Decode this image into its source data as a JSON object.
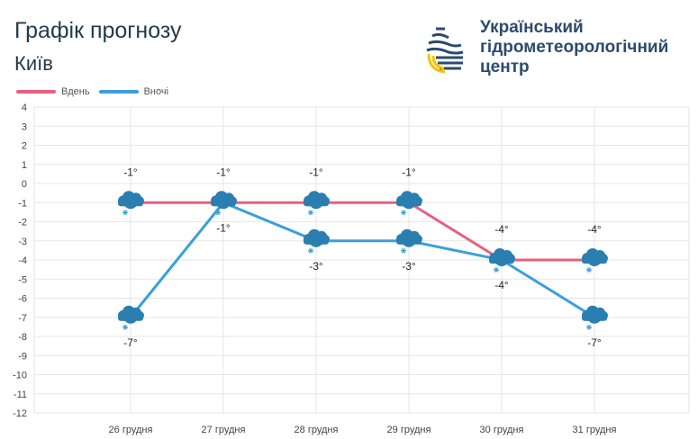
{
  "header": {
    "title": "Графік прогнозу",
    "city": "Київ"
  },
  "organization": {
    "line1": "Український",
    "line2": "гідрометеорологічний",
    "line3": "центр"
  },
  "colors": {
    "day": "#e8607f",
    "night": "#3a9fdd"
  },
  "chart_data": {
    "type": "line",
    "categories": [
      "26 грудня",
      "27 грудня",
      "28 грудня",
      "29 грудня",
      "30 грудня",
      "31 грудня"
    ],
    "series": [
      {
        "name": "Вдень",
        "values": [
          -1,
          -1,
          -1,
          -1,
          -4,
          -4
        ],
        "labels": [
          "-1°",
          "-1°",
          "-1°",
          "-1°",
          "-4°",
          "-4°"
        ]
      },
      {
        "name": "Вночі",
        "values": [
          -7,
          -1,
          -3,
          -3,
          -4,
          -7
        ],
        "labels": [
          "-7°",
          "-1°",
          "-3°",
          "-3°",
          "-4°",
          "-7°"
        ]
      }
    ],
    "ylim": [
      -12,
      4
    ],
    "yticks": [
      "4",
      "3",
      "2",
      "1",
      "0",
      "-1",
      "-2",
      "-3",
      "-4",
      "-5",
      "-6",
      "-7",
      "-8",
      "-9",
      "-10",
      "-11",
      "-12"
    ],
    "grid": true,
    "legend": "top-left",
    "icons": "snow-cloud-icon"
  }
}
